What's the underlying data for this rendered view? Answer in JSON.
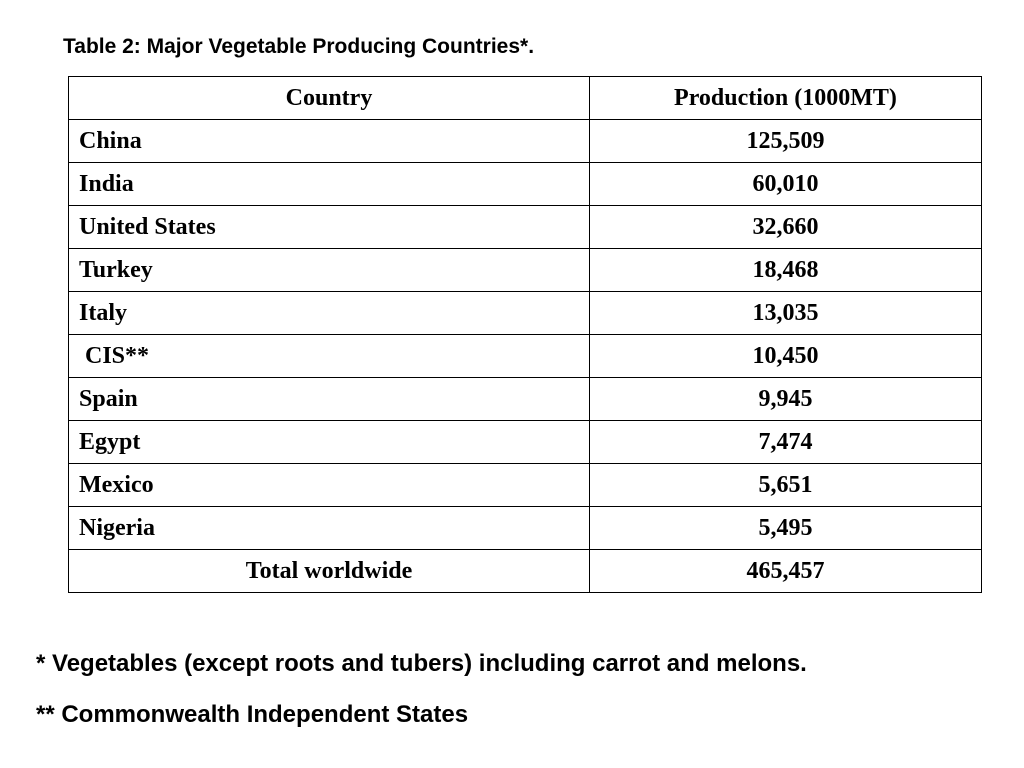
{
  "caption": "Table 2: Major Vegetable Producing Countries*.",
  "table": {
    "headers": [
      "Country",
      "Production (1000MT)"
    ],
    "rows": [
      {
        "country": "China",
        "production": "125,509"
      },
      {
        "country": "India",
        "production": "60,010"
      },
      {
        "country": "United States",
        "production": "32,660"
      },
      {
        "country": "Turkey",
        "production": "18,468"
      },
      {
        "country": "Italy",
        "production": "13,035"
      },
      {
        "country": " CIS**",
        "production": "10,450"
      },
      {
        "country": "Spain",
        "production": "9,945"
      },
      {
        "country": "Egypt",
        "production": "7,474"
      },
      {
        "country": "Mexico",
        "production": "5,651"
      },
      {
        "country": "Nigeria",
        "production": "5,495"
      }
    ],
    "total": {
      "label": "Total worldwide",
      "production": "465,457"
    }
  },
  "footnotes": [
    "* Vegetables (except roots and tubers) including carrot and melons.",
    "** Commonwealth Independent States"
  ]
}
